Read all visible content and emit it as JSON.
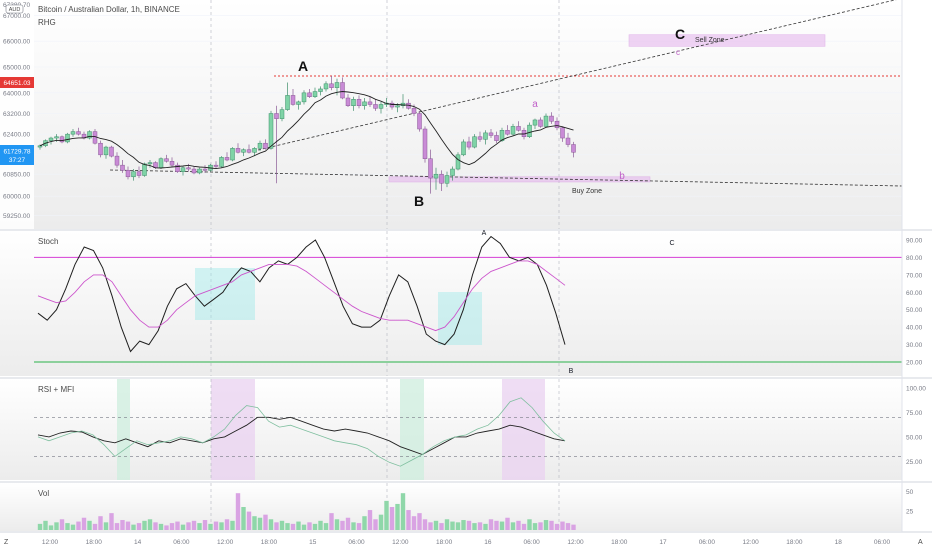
{
  "header": {
    "symbol_title": "Bitcoin / Australian Dollar, 1h, BINANCE",
    "indicator": "RHG",
    "currency_badge": "AUD"
  },
  "colors": {
    "bull": "#26a69a",
    "bull_light": "#7fd3a6",
    "bear": "#c98bd6",
    "zone": "#e6b8ee",
    "stoch_k": "#1f1f1f",
    "stoch_d": "#cc55cc",
    "level_top": "#d63ed6",
    "level_bottom": "#2bb34a",
    "resistance": "#e53935",
    "price_tag": "#2196f3",
    "res_tag": "#e53935"
  },
  "price_axis": {
    "ticks": [
      "67000.00",
      "66000.00",
      "65000.00",
      "64000.00",
      "63200.00",
      "62400.00",
      "61600.00",
      "60850.00",
      "60000.00",
      "59250.00"
    ],
    "top_label": "67380.70",
    "current_price": "61729.78",
    "countdown": "37:27",
    "resistance_price": "64651.03"
  },
  "annotations": {
    "wave_A": "A",
    "wave_B": "B",
    "wave_C": "C",
    "small_a": "a",
    "small_b": "b",
    "small_c": "c",
    "sell_zone": "Sell Zone",
    "buy_zone": "Buy Zone"
  },
  "stoch_panel": {
    "title": "Stoch",
    "axis": [
      "90.00",
      "80.00",
      "70.00",
      "60.00",
      "50.00",
      "40.00",
      "30.00",
      "20.00"
    ],
    "label_A": "A",
    "label_B": "B",
    "label_C": "C"
  },
  "rsi_panel": {
    "title": "RSI + MFI",
    "axis": [
      "100.00",
      "75.00",
      "50.00",
      "25.00"
    ]
  },
  "vol_panel": {
    "title": "Vol",
    "axis": [
      "50",
      "25"
    ]
  },
  "time_axis": {
    "labels": [
      "12:00",
      "18:00",
      "14",
      "06:00",
      "12:00",
      "18:00",
      "15",
      "06:00",
      "12:00",
      "18:00",
      "16",
      "06:00",
      "12:00",
      "18:00",
      "17",
      "06:00",
      "12:00",
      "18:00",
      "18",
      "06:00"
    ],
    "left_btn": "Z",
    "right_btn": "A"
  },
  "chart_data": [
    {
      "type": "candlestick",
      "name": "Bitcoin / Australian Dollar, 1h, BINANCE",
      "candles": [
        [
          61900,
          62000,
          61800,
          61950
        ],
        [
          61950,
          62200,
          61900,
          62150
        ],
        [
          62150,
          62300,
          62000,
          62250
        ],
        [
          62250,
          62400,
          62100,
          62300
        ],
        [
          62300,
          62350,
          62050,
          62100
        ],
        [
          62100,
          62450,
          62050,
          62400
        ],
        [
          62400,
          62600,
          62300,
          62500
        ],
        [
          62500,
          62650,
          62350,
          62400
        ],
        [
          62400,
          62500,
          62200,
          62250
        ],
        [
          62250,
          62550,
          62200,
          62500
        ],
        [
          62500,
          62600,
          62000,
          62050
        ],
        [
          62050,
          62150,
          61500,
          61600
        ],
        [
          61600,
          61950,
          61450,
          61900
        ],
        [
          61900,
          61950,
          61500,
          61550
        ],
        [
          61550,
          61700,
          61100,
          61200
        ],
        [
          61200,
          61400,
          60900,
          61000
        ],
        [
          61000,
          61150,
          60650,
          60750
        ],
        [
          60750,
          61050,
          60600,
          60950
        ],
        [
          60950,
          61150,
          60700,
          60800
        ],
        [
          60800,
          61300,
          60750,
          61250
        ],
        [
          61250,
          61400,
          61100,
          61300
        ],
        [
          61300,
          61350,
          61050,
          61100
        ],
        [
          61100,
          61500,
          61050,
          61450
        ],
        [
          61450,
          61600,
          61300,
          61350
        ],
        [
          61350,
          61500,
          61150,
          61200
        ],
        [
          61200,
          61300,
          60900,
          60950
        ],
        [
          60950,
          61150,
          60800,
          61100
        ],
        [
          61100,
          61250,
          60950,
          61050
        ],
        [
          61050,
          61150,
          60850,
          60900
        ],
        [
          60900,
          61100,
          60850,
          61050
        ],
        [
          61050,
          61200,
          60900,
          61000
        ],
        [
          61000,
          61250,
          60950,
          61200
        ],
        [
          61200,
          61350,
          61050,
          61150
        ],
        [
          61150,
          61550,
          61100,
          61500
        ],
        [
          61500,
          61700,
          61350,
          61400
        ],
        [
          61400,
          61900,
          61350,
          61850
        ],
        [
          61850,
          62050,
          61650,
          61700
        ],
        [
          61700,
          61850,
          61550,
          61800
        ],
        [
          61800,
          62000,
          61650,
          61700
        ],
        [
          61700,
          61900,
          61550,
          61850
        ],
        [
          61850,
          62150,
          61750,
          62050
        ],
        [
          62050,
          62200,
          61800,
          61850
        ],
        [
          61850,
          63300,
          61800,
          63200
        ],
        [
          63200,
          63500,
          60500,
          63000
        ],
        [
          63000,
          63450,
          62900,
          63350
        ],
        [
          63350,
          64400,
          63300,
          63900
        ],
        [
          63900,
          64150,
          63500,
          63550
        ],
        [
          63550,
          63700,
          63350,
          63650
        ],
        [
          63650,
          64100,
          63550,
          64000
        ],
        [
          64000,
          64150,
          63800,
          63850
        ],
        [
          63850,
          64200,
          63800,
          64050
        ],
        [
          64050,
          64250,
          63900,
          64150
        ],
        [
          64150,
          64450,
          64050,
          64350
        ],
        [
          64350,
          64650,
          64100,
          64200
        ],
        [
          64200,
          64550,
          63900,
          64400
        ],
        [
          64400,
          64600,
          63750,
          63800
        ],
        [
          63800,
          63950,
          63450,
          63500
        ],
        [
          63500,
          63850,
          63300,
          63750
        ],
        [
          63750,
          63900,
          63400,
          63500
        ],
        [
          63500,
          63800,
          63350,
          63650
        ],
        [
          63650,
          63850,
          63450,
          63550
        ],
        [
          63550,
          63750,
          63300,
          63400
        ],
        [
          63400,
          63650,
          63200,
          63550
        ],
        [
          63550,
          63800,
          63450,
          63600
        ],
        [
          63600,
          63700,
          63350,
          63450
        ],
        [
          63450,
          63600,
          63250,
          63500
        ],
        [
          63500,
          63950,
          63400,
          63600
        ],
        [
          63600,
          63750,
          63350,
          63400
        ],
        [
          63400,
          63550,
          63100,
          63200
        ],
        [
          63200,
          63300,
          62500,
          62600
        ],
        [
          62600,
          62700,
          61300,
          61450
        ],
        [
          61450,
          61800,
          60100,
          60700
        ],
        [
          60700,
          61100,
          60250,
          60850
        ],
        [
          60850,
          61000,
          60200,
          60500
        ],
        [
          60500,
          60950,
          60350,
          60800
        ],
        [
          60800,
          61150,
          60600,
          61050
        ],
        [
          61050,
          61700,
          61000,
          61600
        ],
        [
          61600,
          62200,
          61550,
          62100
        ],
        [
          62100,
          62300,
          61800,
          61900
        ],
        [
          61900,
          62400,
          61850,
          62300
        ],
        [
          62300,
          62500,
          62100,
          62200
        ],
        [
          62200,
          62550,
          62000,
          62450
        ],
        [
          62450,
          62600,
          62250,
          62350
        ],
        [
          62350,
          62500,
          62050,
          62150
        ],
        [
          62150,
          62650,
          62100,
          62550
        ],
        [
          62550,
          62750,
          62350,
          62400
        ],
        [
          62400,
          62800,
          62350,
          62700
        ],
        [
          62700,
          62900,
          62500,
          62550
        ],
        [
          62550,
          62650,
          62200,
          62300
        ],
        [
          62300,
          62850,
          62250,
          62750
        ],
        [
          62750,
          63000,
          62600,
          62950
        ],
        [
          62950,
          63050,
          62650,
          62700
        ],
        [
          62700,
          63200,
          62650,
          63100
        ],
        [
          63100,
          63250,
          62800,
          62900
        ],
        [
          62900,
          63050,
          62550,
          62650
        ],
        [
          62650,
          62700,
          62100,
          62250
        ],
        [
          62250,
          62450,
          61900,
          62000
        ],
        [
          62000,
          62100,
          61500,
          61700
        ]
      ],
      "moving_average": "RHG",
      "resistance_level": 64651.03,
      "current_price": 61729.78,
      "zones": [
        {
          "name": "Sell Zone",
          "from": 65800,
          "to": 66250
        },
        {
          "name": "Buy Zone",
          "from": 60550,
          "to": 60750
        }
      ],
      "wave_labels": [
        "A",
        "B",
        "C",
        "a",
        "b",
        "c"
      ]
    },
    {
      "type": "line",
      "title": "Stoch",
      "levels": [
        80,
        20
      ],
      "ylim": [
        15,
        92
      ],
      "series": [
        {
          "name": "%K",
          "values": [
            48,
            44,
            50,
            62,
            76,
            86,
            84,
            74,
            58,
            40,
            26,
            32,
            30,
            38,
            52,
            62,
            65,
            58,
            52,
            56,
            60,
            68,
            74,
            72,
            66,
            74,
            78,
            76,
            80,
            86,
            90,
            80,
            66,
            52,
            42,
            40,
            40,
            44,
            58,
            70,
            66,
            52,
            36,
            32,
            30,
            36,
            50,
            70,
            86,
            92,
            88,
            80,
            78,
            80,
            76,
            64,
            48,
            30
          ]
        },
        {
          "name": "%D",
          "values": [
            58,
            56,
            54,
            55,
            60,
            66,
            70,
            70,
            66,
            58,
            50,
            44,
            40,
            40,
            44,
            50,
            54,
            58,
            60,
            62,
            64,
            66,
            70,
            72,
            74,
            76,
            76,
            76,
            75,
            72,
            68,
            64,
            60,
            56,
            52,
            49,
            47,
            45,
            44,
            44,
            44,
            42,
            40,
            38,
            40,
            46,
            54,
            62,
            68,
            72,
            74,
            76,
            78,
            78,
            76,
            72,
            68,
            64
          ]
        }
      ]
    },
    {
      "type": "line",
      "title": "RSI + MFI",
      "levels": [
        70,
        30
      ],
      "ylim": [
        10,
        100
      ],
      "series": [
        {
          "name": "RSI",
          "values": [
            52,
            50,
            54,
            56,
            55,
            50,
            46,
            44,
            48,
            44,
            40,
            46,
            44,
            48,
            46,
            44,
            48,
            50,
            56,
            62,
            70,
            70,
            68,
            70,
            66,
            62,
            58,
            56,
            58,
            56,
            54,
            50,
            46,
            40,
            36,
            32,
            38,
            44,
            50,
            50,
            54,
            56,
            58,
            62,
            60,
            56,
            52,
            48,
            46
          ]
        },
        {
          "name": "MFI",
          "values": [
            50,
            46,
            50,
            54,
            56,
            52,
            42,
            30,
            38,
            46,
            42,
            44,
            46,
            50,
            48,
            44,
            50,
            58,
            72,
            82,
            80,
            66,
            60,
            62,
            58,
            54,
            50,
            46,
            44,
            42,
            38,
            30,
            24,
            20,
            26,
            32,
            40,
            46,
            50,
            52,
            58,
            62,
            72,
            86,
            90,
            80,
            66,
            54,
            46
          ]
        }
      ]
    },
    {
      "type": "bar",
      "title": "Vol",
      "ylim": [
        0,
        60
      ],
      "values": [
        8,
        12,
        6,
        10,
        14,
        9,
        7,
        11,
        16,
        12,
        8,
        18,
        10,
        22,
        9,
        13,
        11,
        7,
        9,
        12,
        14,
        10,
        8,
        6,
        9,
        11,
        7,
        10,
        12,
        9,
        13,
        8,
        11,
        10,
        14,
        12,
        48,
        30,
        24,
        18,
        16,
        20,
        14,
        10,
        12,
        9,
        8,
        11,
        7,
        10,
        8,
        12,
        9,
        22,
        14,
        12,
        16,
        10,
        9,
        18,
        26,
        14,
        20,
        38,
        30,
        34,
        48,
        26,
        18,
        22,
        14,
        10,
        12,
        9,
        14,
        11,
        10,
        13,
        12,
        9,
        10,
        8,
        14,
        12,
        11,
        16,
        10,
        12,
        8,
        14,
        9,
        10,
        13,
        12,
        8,
        11,
        9,
        7
      ]
    }
  ]
}
